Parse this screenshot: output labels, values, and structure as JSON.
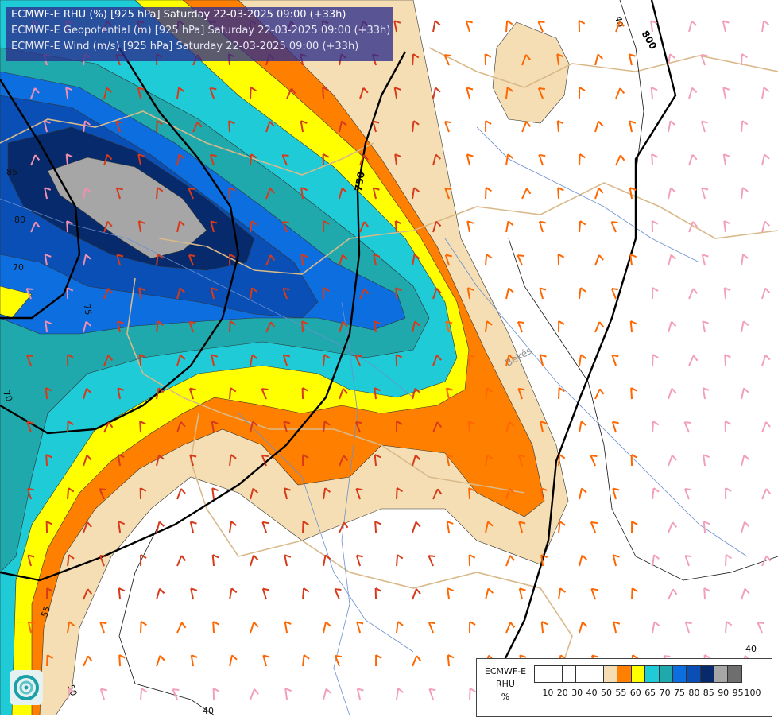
{
  "header": {
    "line1": "ECMWF-E RHU (%) [925 hPa] Saturday 22-03-2025 09:00 (+33h)",
    "line2": "ECMWF-E Geopotential (m) [925 hPa] Saturday 22-03-2025 09:00 (+33h)",
    "line3": "ECMWF-E Wind (m/s) [925 hPa] Saturday 22-03-2025 09:00 (+33h)"
  },
  "colorbar": {
    "model": "ECMWF-E",
    "field": "RHU",
    "unit": "%",
    "ticks": [
      "10",
      "20",
      "30",
      "40",
      "50",
      "55",
      "60",
      "65",
      "70",
      "75",
      "80",
      "85",
      "90",
      "95",
      "100"
    ],
    "colors": [
      "#ffffff",
      "#ffffff",
      "#ffffff",
      "#ffffff",
      "#ffffff",
      "#f5deb3",
      "#ff8000",
      "#ffff00",
      "#1ecbd6",
      "#1fa9ad",
      "#0d6ee0",
      "#0a4fb5",
      "#062a6b",
      "#a6a6a6",
      "#6e6e6e"
    ]
  },
  "geopotential_labels": [
    "750",
    "800",
    "40",
    "40"
  ],
  "rhu_labels": [
    "70",
    "75",
    "80",
    "85",
    "70",
    "55",
    "50",
    "40"
  ],
  "place_labels": [
    "Békés"
  ],
  "logo": "ecmwf-logo"
}
